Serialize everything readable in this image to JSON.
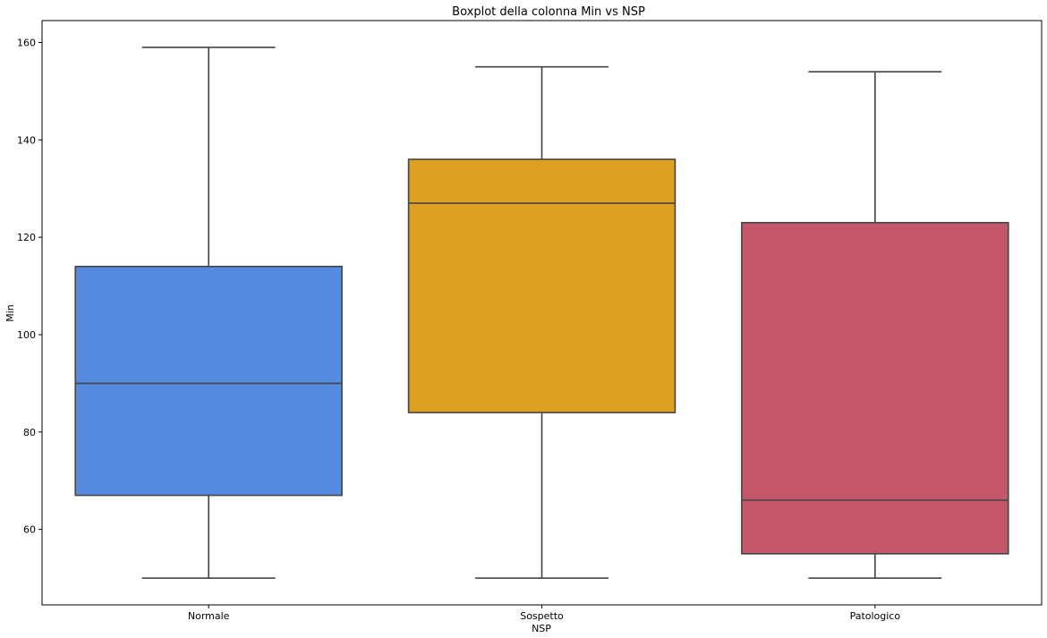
{
  "chart_data": {
    "type": "boxplot",
    "title": "Boxplot della colonna Min vs NSP",
    "xlabel": "NSP",
    "ylabel": "Min",
    "ylim": [
      44.5,
      164.5
    ],
    "yticks": [
      60,
      80,
      100,
      120,
      140,
      160
    ],
    "grid": false,
    "categories": [
      "Normale",
      "Sospetto",
      "Patologico"
    ],
    "boxes": [
      {
        "category": "Normale",
        "whisker_low": 50,
        "q1": 67,
        "median": 90,
        "q3": 114,
        "whisker_high": 159
      },
      {
        "category": "Sospetto",
        "whisker_low": 50,
        "q1": 84,
        "median": 127,
        "q3": 136,
        "whisker_high": 155
      },
      {
        "category": "Patologico",
        "whisker_low": 50,
        "q1": 55,
        "median": 66,
        "q3": 123,
        "whisker_high": 154
      }
    ],
    "colors": [
      "#558be0",
      "#dea021",
      "#c4586a"
    ],
    "line_color": "#444444"
  }
}
